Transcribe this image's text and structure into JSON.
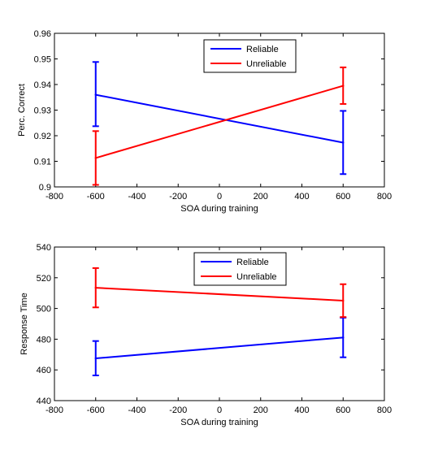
{
  "figure_background": "#ffffff",
  "chart_data": [
    {
      "type": "line",
      "xlabel": "SOA during training",
      "ylabel": "Perc. Correct",
      "xlim": [
        -800,
        800
      ],
      "ylim": [
        0.9,
        0.96
      ],
      "xticks": [
        -800,
        -600,
        -400,
        -200,
        0,
        200,
        400,
        600,
        800
      ],
      "xtick_labels": [
        "-800",
        "-600",
        "-400",
        "-200",
        "0",
        "200",
        "400",
        "600",
        "800"
      ],
      "yticks": [
        0.9,
        0.91,
        0.92,
        0.93,
        0.94,
        0.95,
        0.96
      ],
      "ytick_labels": [
        "0.9",
        "0.91",
        "0.92",
        "0.93",
        "0.94",
        "0.95",
        "0.96"
      ],
      "grid": false,
      "legend_position": "top-right",
      "x": [
        -600,
        600
      ],
      "series": [
        {
          "name": "Reliable",
          "color": "#0000ff",
          "values": [
            0.936,
            0.9173
          ],
          "err_low": [
            0.9237,
            0.905
          ],
          "err_high": [
            0.9488,
            0.9297
          ]
        },
        {
          "name": "Unreliable",
          "color": "#ff0000",
          "values": [
            0.9113,
            0.9395
          ],
          "err_low": [
            0.9008,
            0.9324
          ],
          "err_high": [
            0.9218,
            0.9467
          ]
        }
      ]
    },
    {
      "type": "line",
      "xlabel": "SOA during training",
      "ylabel": "Response Time",
      "xlim": [
        -800,
        800
      ],
      "ylim": [
        440,
        540
      ],
      "xticks": [
        -800,
        -600,
        -400,
        -200,
        0,
        200,
        400,
        600,
        800
      ],
      "xtick_labels": [
        "-800",
        "-600",
        "-400",
        "-200",
        "0",
        "200",
        "400",
        "600",
        "800"
      ],
      "yticks": [
        440,
        460,
        480,
        500,
        520,
        540
      ],
      "ytick_labels": [
        "440",
        "460",
        "480",
        "500",
        "520",
        "540"
      ],
      "grid": false,
      "legend_position": "top-center",
      "x": [
        -600,
        600
      ],
      "series": [
        {
          "name": "Reliable",
          "color": "#0000ff",
          "values": [
            467.5,
            481.1
          ],
          "err_low": [
            456.4,
            468.2
          ],
          "err_high": [
            478.8,
            494.0
          ]
        },
        {
          "name": "Unreliable",
          "color": "#ff0000",
          "values": [
            513.5,
            505.1
          ],
          "err_low": [
            500.7,
            494.4
          ],
          "err_high": [
            526.3,
            515.8
          ]
        }
      ]
    }
  ]
}
